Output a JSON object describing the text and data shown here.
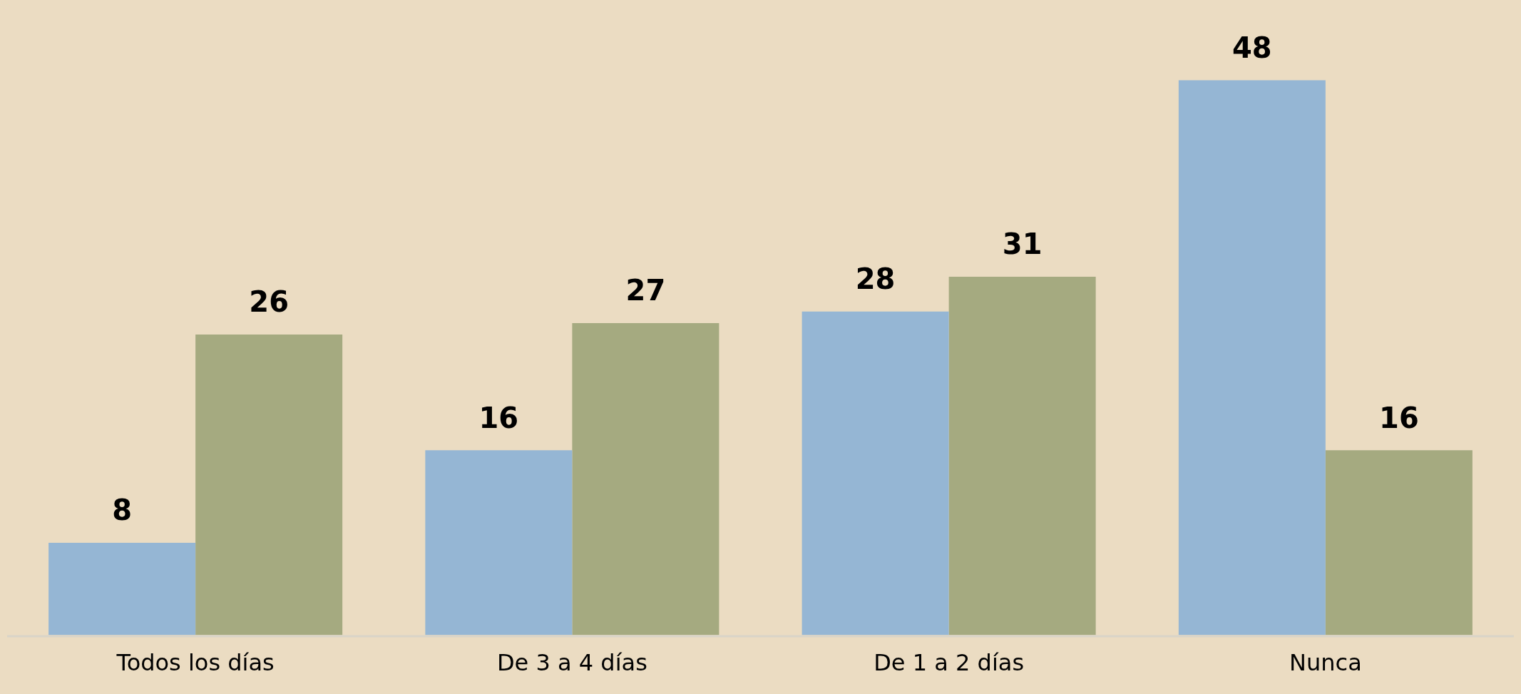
{
  "chart_data": {
    "type": "bar",
    "categories": [
      "Todos los días",
      "De 3 a 4 días",
      "De 1 a 2 días",
      "Nunca"
    ],
    "series": [
      {
        "color": "#95b6d4",
        "values": [
          8,
          16,
          28,
          48
        ]
      },
      {
        "color": "#a5aa80",
        "values": [
          26,
          27,
          31,
          16
        ]
      }
    ],
    "data_labels": true,
    "grid": false,
    "legend": false,
    "tick_labels": "x"
  }
}
